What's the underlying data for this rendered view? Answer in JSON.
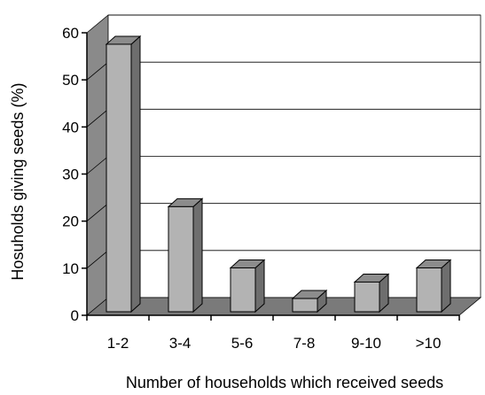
{
  "chart_data": {
    "type": "bar",
    "style": "3d-column",
    "title": "",
    "xlabel": "Number of households which received seeds",
    "ylabel": "Hosuholds giving seeds (%)",
    "categories": [
      "1-2",
      "3-4",
      "5-6",
      "7-8",
      "9-10",
      ">10"
    ],
    "series": [
      {
        "values": [
          57,
          22.5,
          9.5,
          3,
          6.5,
          9.5
        ]
      }
    ],
    "ylim": [
      0,
      60
    ],
    "yticks": [
      "0",
      "10",
      "20",
      "30",
      "40",
      "50",
      "60"
    ],
    "grid": true,
    "legend": "none",
    "colors": {
      "bar_front": "#b3b3b3",
      "bar_side": "#6e6e6e",
      "bar_top": "#8c8c8c",
      "wall": "#ffffff",
      "left_wall": "#8a8a8a",
      "floor": "#7a7a7a"
    }
  }
}
